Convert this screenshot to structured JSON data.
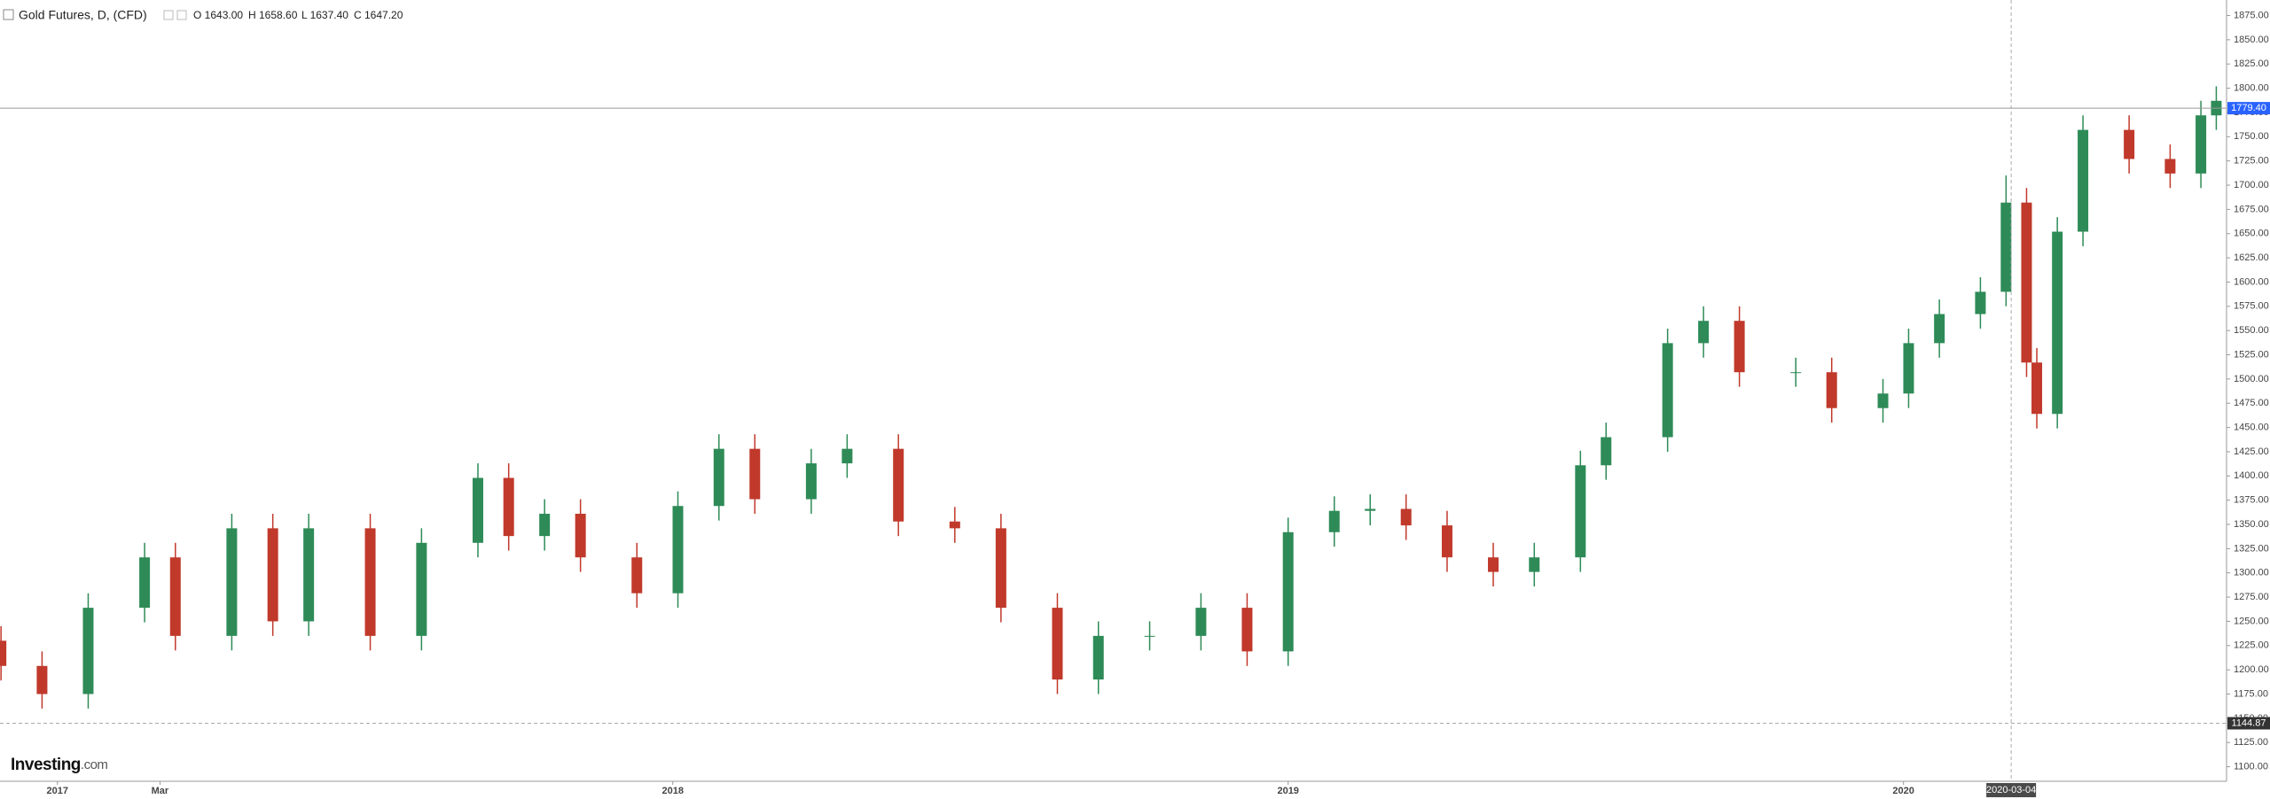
{
  "chart_data": {
    "type": "candlestick",
    "title": "Gold Futures, D, (CFD)",
    "legend": [
      "O 1643.00",
      "H 1658.60",
      "L 1637.40",
      "C 1647.20"
    ],
    "watermark": [
      "Investing",
      ".com"
    ],
    "up_color": "#2e8b57",
    "down_color": "#c0392b",
    "x": [
      -1.1,
      -0.3,
      0.6,
      1.7,
      2.3,
      3.4,
      4.2,
      4.9,
      6.1,
      7.1,
      8.2,
      8.8,
      9.5,
      10.2,
      11.3,
      12.1,
      12.9,
      13.6,
      14.7,
      15.4,
      16.4,
      17.5,
      18.4,
      19.5,
      20.3,
      21.3,
      22.3,
      23.2,
      24.0,
      24.9,
      25.6,
      26.3,
      27.1,
      28.0,
      28.8,
      29.7,
      30.2,
      31.4,
      32.1,
      32.8,
      33.9,
      34.6,
      35.6,
      36.1,
      36.7,
      37.5,
      38.0,
      38.4,
      38.6,
      39.0,
      39.5,
      40.4,
      41.2,
      41.8,
      42.1
    ],
    "open": [
      1230,
      1204,
      1175,
      1264,
      1316,
      1235,
      1346,
      1250,
      1346,
      1235,
      1331,
      1398,
      1338,
      1361,
      1316,
      1279,
      1369,
      1428,
      1376,
      1413,
      1428,
      1353,
      1346,
      1264,
      1190,
      1235,
      1235,
      1264,
      1219,
      1342,
      1364,
      1366,
      1349,
      1316,
      1301,
      1316,
      1411,
      1440,
      1537,
      1560,
      1507,
      1507,
      1470,
      1485,
      1537,
      1567,
      1590,
      1682,
      1517,
      1464,
      1652,
      1757,
      1727,
      1712,
      1772
    ],
    "high": [
      1245,
      1219,
      1279,
      1331,
      1331,
      1361,
      1361,
      1361,
      1361,
      1346,
      1413,
      1413,
      1376,
      1376,
      1331,
      1384,
      1443,
      1443,
      1428,
      1443,
      1443,
      1368,
      1361,
      1279,
      1250,
      1250,
      1279,
      1279,
      1357,
      1379,
      1381,
      1381,
      1364,
      1331,
      1331,
      1426,
      1455,
      1552,
      1575,
      1575,
      1522,
      1522,
      1500,
      1552,
      1582,
      1605,
      1710,
      1697,
      1532,
      1667,
      1772,
      1772,
      1742,
      1787,
      1802
    ],
    "low": [
      1189,
      1160,
      1160,
      1249,
      1220,
      1220,
      1235,
      1235,
      1220,
      1220,
      1316,
      1323,
      1323,
      1301,
      1264,
      1264,
      1354,
      1361,
      1361,
      1398,
      1338,
      1331,
      1249,
      1175,
      1175,
      1220,
      1220,
      1204,
      1204,
      1327,
      1349,
      1334,
      1301,
      1286,
      1286,
      1301,
      1396,
      1425,
      1522,
      1492,
      1492,
      1455,
      1455,
      1470,
      1522,
      1552,
      1575,
      1502,
      1449,
      1449,
      1637,
      1712,
      1697,
      1697,
      1757
    ],
    "close": [
      1204,
      1175,
      1264,
      1316,
      1235,
      1346,
      1250,
      1346,
      1235,
      1331,
      1398,
      1338,
      1361,
      1316,
      1279,
      1369,
      1428,
      1376,
      1413,
      1428,
      1353,
      1346,
      1264,
      1190,
      1235,
      1235,
      1264,
      1219,
      1342,
      1364,
      1366,
      1349,
      1316,
      1301,
      1316,
      1411,
      1440,
      1537,
      1560,
      1507,
      1507,
      1470,
      1485,
      1537,
      1567,
      1590,
      1682,
      1517,
      1464,
      1652,
      1757,
      1727,
      1712,
      1772,
      1787
    ],
    "xlim": [
      -1.12,
      42.3
    ],
    "xticks": [
      {
        "value": 0,
        "label": "2017"
      },
      {
        "value": 2,
        "label": "Mar"
      },
      {
        "value": 12,
        "label": "2018"
      },
      {
        "value": 24,
        "label": "2019"
      },
      {
        "value": 36,
        "label": "2020"
      }
    ],
    "ylim": [
      1085,
      1891
    ],
    "yticks": [
      {
        "value": 1100,
        "label": "1100.00"
      },
      {
        "value": 1125,
        "label": "1125.00"
      },
      {
        "value": 1150,
        "label": "1150.00"
      },
      {
        "value": 1175,
        "label": "1175.00"
      },
      {
        "value": 1200,
        "label": "1200.00"
      },
      {
        "value": 1225,
        "label": "1225.00"
      },
      {
        "value": 1250,
        "label": "1250.00"
      },
      {
        "value": 1275,
        "label": "1275.00"
      },
      {
        "value": 1300,
        "label": "1300.00"
      },
      {
        "value": 1325,
        "label": "1325.00"
      },
      {
        "value": 1350,
        "label": "1350.00"
      },
      {
        "value": 1375,
        "label": "1375.00"
      },
      {
        "value": 1400,
        "label": "1400.00"
      },
      {
        "value": 1425,
        "label": "1425.00"
      },
      {
        "value": 1450,
        "label": "1450.00"
      },
      {
        "value": 1475,
        "label": "1475.00"
      },
      {
        "value": 1500,
        "label": "1500.00"
      },
      {
        "value": 1525,
        "label": "1525.00"
      },
      {
        "value": 1550,
        "label": "1550.00"
      },
      {
        "value": 1575,
        "label": "1575.00"
      },
      {
        "value": 1600,
        "label": "1600.00"
      },
      {
        "value": 1625,
        "label": "1625.00"
      },
      {
        "value": 1650,
        "label": "1650.00"
      },
      {
        "value": 1675,
        "label": "1675.00"
      },
      {
        "value": 1700,
        "label": "1700.00"
      },
      {
        "value": 1725,
        "label": "1725.00"
      },
      {
        "value": 1750,
        "label": "1750.00"
      },
      {
        "value": 1775,
        "label": "1775.00"
      },
      {
        "value": 1800,
        "label": "1800.00"
      },
      {
        "value": 1825,
        "label": "1825.00"
      },
      {
        "value": 1850,
        "label": "1850.00"
      },
      {
        "value": 1875,
        "label": "1875.00"
      }
    ],
    "price_lines": [
      {
        "value": 1779.4,
        "label": "1779.40",
        "color": "#2962ff"
      },
      {
        "value": 1144.87,
        "label": "1144.87",
        "color": "#333333"
      }
    ],
    "crosshair": {
      "x": 38.1,
      "label": "2020-03-04"
    }
  }
}
